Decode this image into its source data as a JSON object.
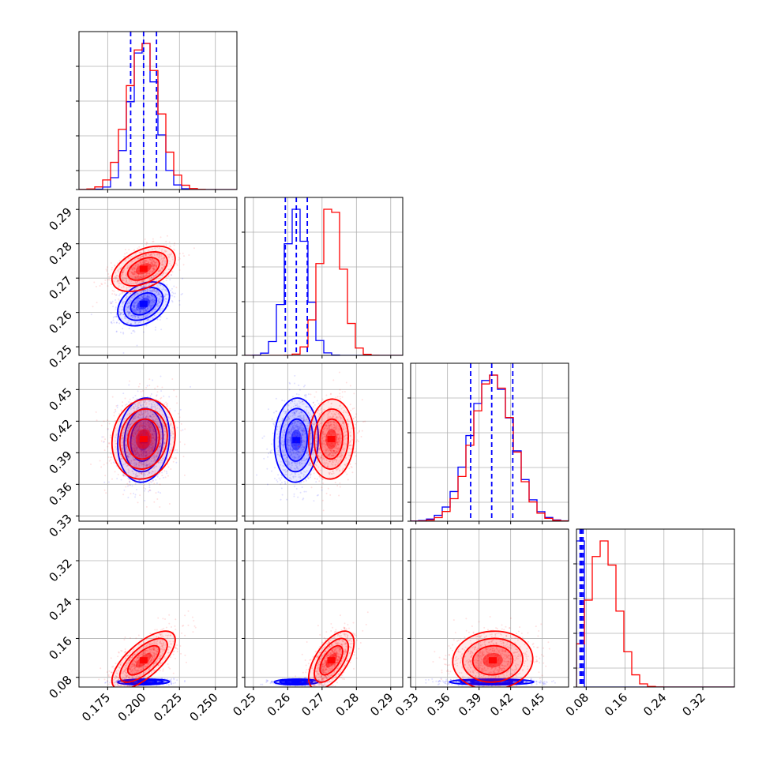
{
  "chart_data": {
    "type": "corner",
    "title": "",
    "series": [
      {
        "name": "",
        "color": "#0000ff"
      },
      {
        "name": "",
        "color": "#ff0000"
      }
    ],
    "parameters": [
      {
        "range": [
          0.155,
          0.265
        ],
        "ticks": [
          0.175,
          0.2,
          0.225,
          0.25
        ],
        "tick_labels": [
          "0.175",
          "0.200",
          "0.225",
          "0.250"
        ],
        "blue": {
          "mean": 0.2,
          "sd": 0.009,
          "quantiles": [
            0.191,
            0.2,
            0.209
          ]
        },
        "red": {
          "mean": 0.2,
          "sd": 0.011
        }
      },
      {
        "range": [
          0.2475,
          0.2935
        ],
        "ticks": [
          0.25,
          0.26,
          0.27,
          0.28,
          0.29
        ],
        "tick_labels": [
          "0.25",
          "0.26",
          "0.27",
          "0.28",
          "0.29"
        ],
        "blue": {
          "mean": 0.2625,
          "sd": 0.0032,
          "quantiles": [
            0.2593,
            0.2625,
            0.2657
          ]
        },
        "red": {
          "mean": 0.2727,
          "sd": 0.0033
        }
      },
      {
        "range": [
          0.325,
          0.475
        ],
        "ticks": [
          0.33,
          0.36,
          0.39,
          0.42,
          0.45
        ],
        "tick_labels": [
          "0.33",
          "0.36",
          "0.39",
          "0.42",
          "0.45"
        ],
        "blue": {
          "mean": 0.402,
          "sd": 0.02,
          "quantiles": [
            0.382,
            0.402,
            0.422
          ]
        },
        "red": {
          "mean": 0.403,
          "sd": 0.019
        }
      },
      {
        "range": [
          0.06,
          0.385
        ],
        "ticks": [
          0.08,
          0.16,
          0.24,
          0.32
        ],
        "tick_labels": [
          "0.08",
          "0.16",
          "0.24",
          "0.32"
        ],
        "blue": {
          "mean": 0.0705,
          "sd": 0.003,
          "quantiles": [
            0.0675,
            0.0705,
            0.0735
          ]
        },
        "red": {
          "mean": 0.115,
          "sd": 0.03
        }
      }
    ],
    "correlations": {
      "blue": {
        "1-0": 0.35,
        "2-0": 0.1,
        "2-1": 0.05,
        "3-0": 0.1,
        "3-1": 0.05,
        "3-2": 0.0
      },
      "red": {
        "1-0": 0.45,
        "2-0": 0.1,
        "2-1": 0.05,
        "3-0": 0.7,
        "3-1": 0.6,
        "3-2": 0.05
      }
    },
    "grid": true,
    "legend": "none"
  }
}
